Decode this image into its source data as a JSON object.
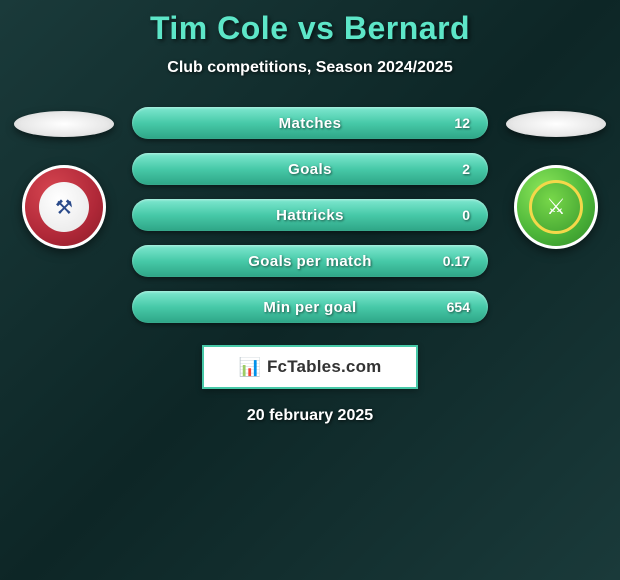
{
  "header": {
    "title": "Tim Cole vs Bernard",
    "subtitle": "Club competitions, Season 2024/2025",
    "title_color": "#5de6c8"
  },
  "left": {
    "crest_bg": "#b02838",
    "crest_glyph": "⚒"
  },
  "right": {
    "crest_bg": "#4fb83a",
    "crest_glyph": "⚔"
  },
  "stats": [
    {
      "label": "Matches",
      "right_value": "12"
    },
    {
      "label": "Goals",
      "right_value": "2"
    },
    {
      "label": "Hattricks",
      "right_value": "0"
    },
    {
      "label": "Goals per match",
      "right_value": "0.17"
    },
    {
      "label": "Min per goal",
      "right_value": "654"
    }
  ],
  "pill_gradient": {
    "top": "#7fe8d0",
    "mid": "#47c9a8",
    "bot": "#2ea586"
  },
  "brand": {
    "icon": "📊",
    "text": "FcTables.com",
    "border_color": "#47c9a8"
  },
  "date": "20 february 2025",
  "background_colors": {
    "a": "#1a3a3a",
    "b": "#0d2626"
  }
}
